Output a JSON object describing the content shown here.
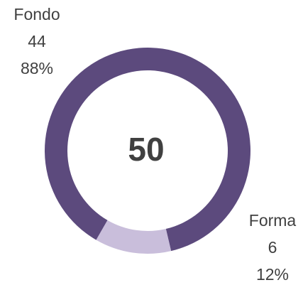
{
  "chart_data": {
    "type": "donut",
    "total": 50,
    "categories": [
      "Fondo",
      "Forma"
    ],
    "values": [
      44,
      6
    ],
    "percentages": [
      88,
      12
    ],
    "percentage_labels": [
      "88%",
      "12%"
    ],
    "colors": [
      "#5c4a7d",
      "#c9bedb"
    ]
  }
}
